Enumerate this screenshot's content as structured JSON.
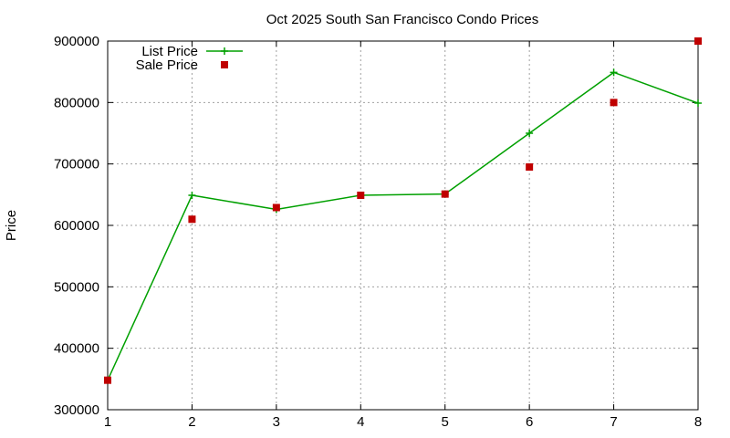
{
  "chart_data": {
    "type": "line",
    "title": "Oct 2025 South San Francisco Condo Prices",
    "xlabel": "",
    "ylabel": "Price",
    "x": [
      1,
      2,
      3,
      4,
      5,
      6,
      7,
      8
    ],
    "xlim": [
      1,
      8
    ],
    "ylim": [
      300000,
      900000
    ],
    "xticks": [
      "1",
      "2",
      "3",
      "4",
      "5",
      "6",
      "7",
      "8"
    ],
    "yticks": [
      "300000",
      "400000",
      "500000",
      "600000",
      "700000",
      "800000",
      "900000"
    ],
    "grid": true,
    "legend_position": "top-left",
    "series": [
      {
        "name": "List Price",
        "style": "line-points",
        "marker": "plus",
        "color": "#00a000",
        "values": [
          348000,
          649000,
          626000,
          649000,
          651000,
          750000,
          849000,
          799000
        ]
      },
      {
        "name": "Sale Price",
        "style": "points",
        "marker": "square",
        "color": "#c00000",
        "values": [
          348000,
          610000,
          629000,
          649000,
          651000,
          695000,
          800000,
          900000
        ]
      }
    ]
  }
}
